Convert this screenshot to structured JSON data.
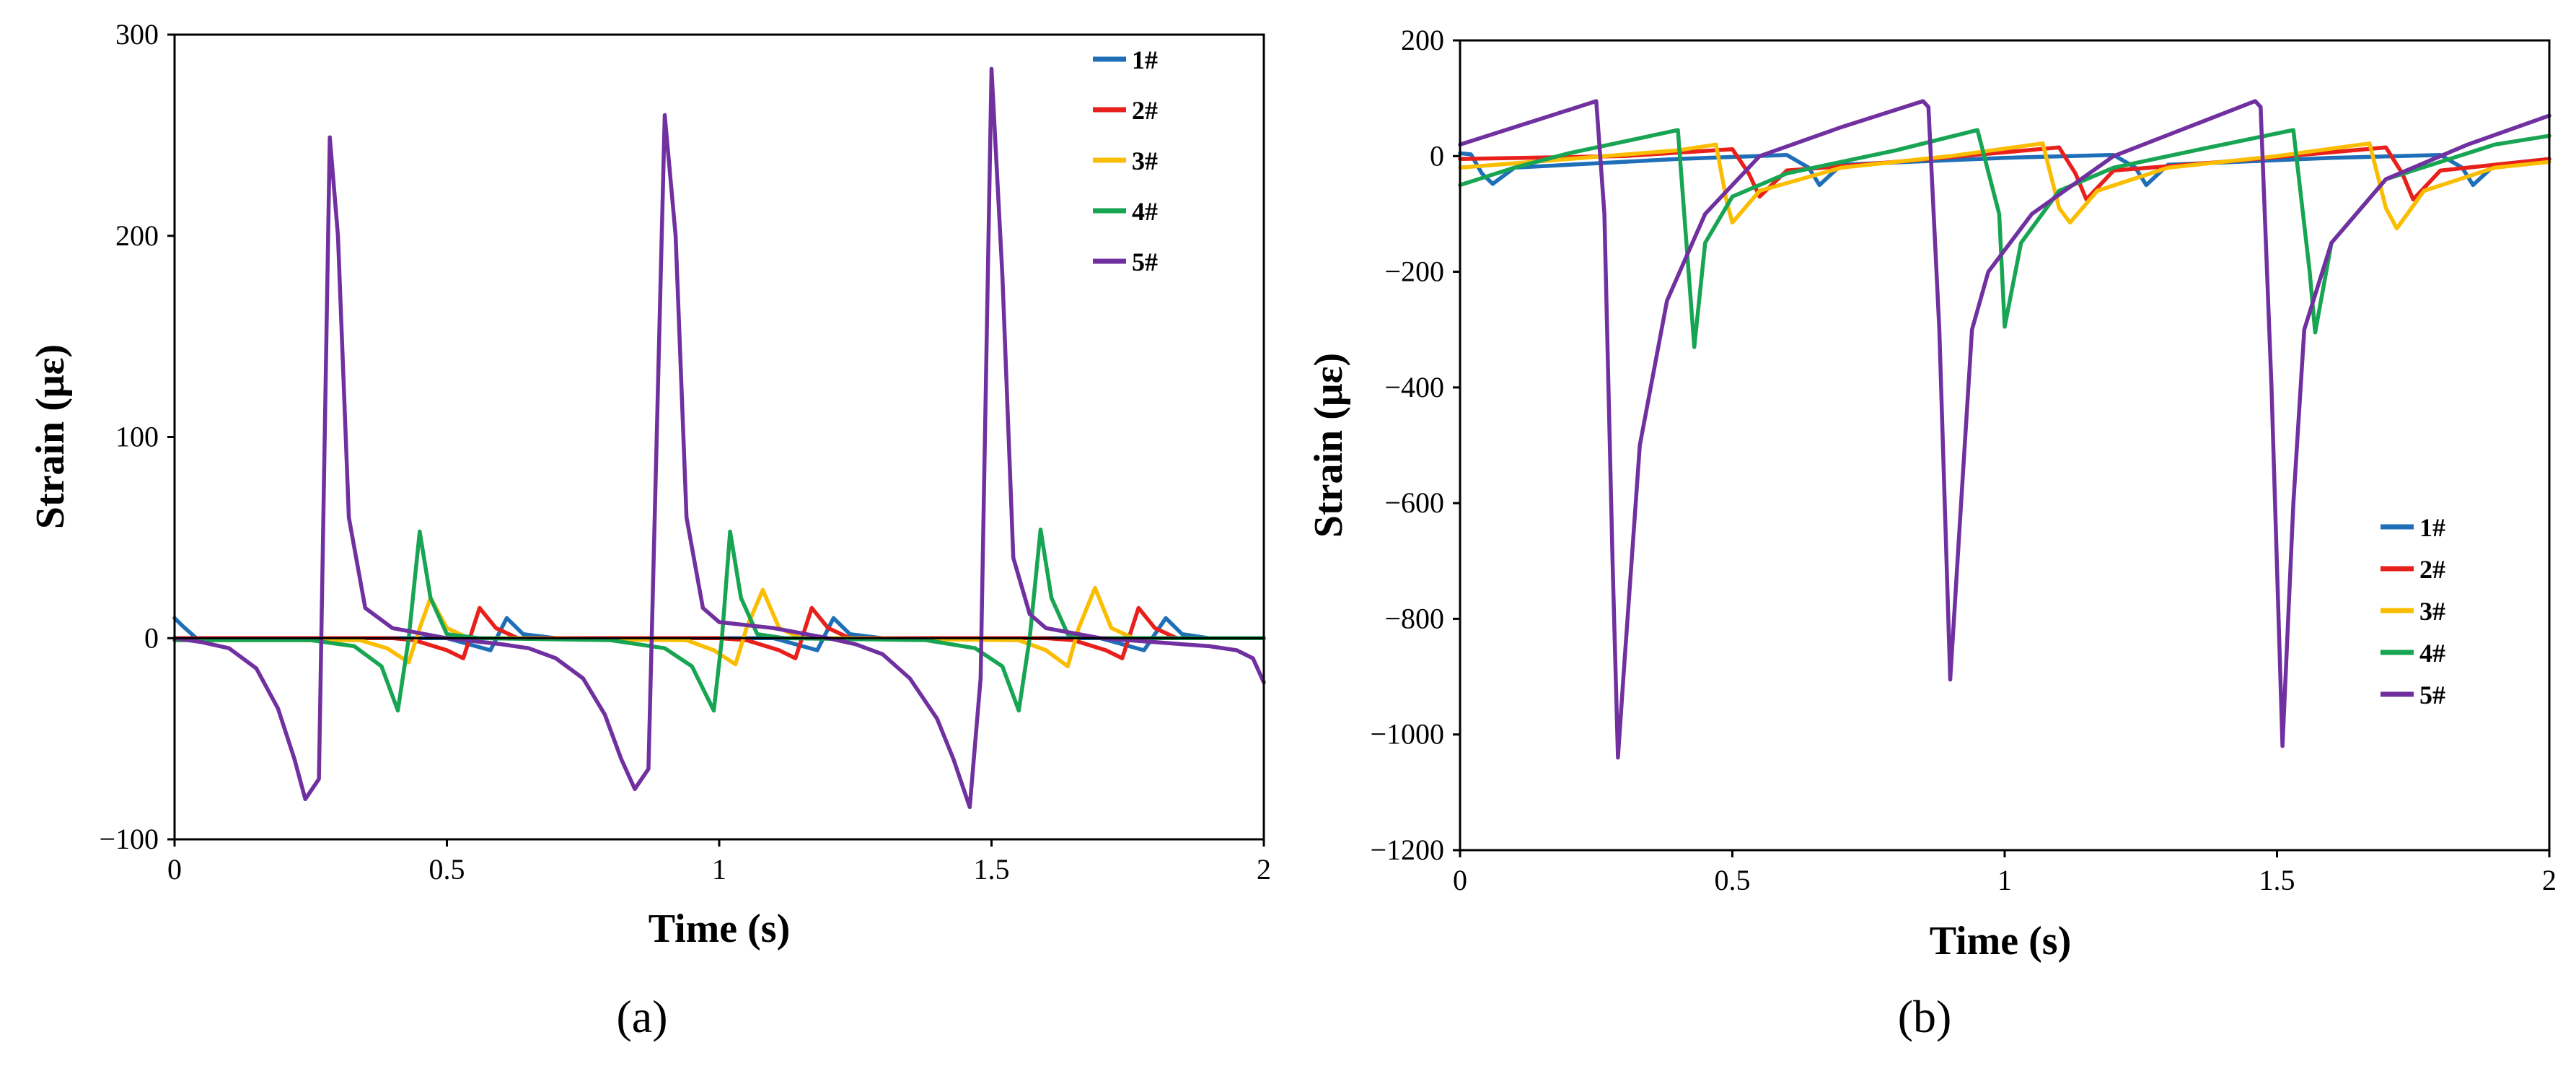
{
  "colors": {
    "1#": "#1f6fb8",
    "2#": "#e8201c",
    "3#": "#fbbd00",
    "4#": "#18a553",
    "5#": "#7030a0"
  },
  "chart_data": [
    {
      "id": "a",
      "type": "line",
      "caption": "(a)",
      "xlabel": "Time (s)",
      "ylabel": "Strain (με)",
      "xlim": [
        0,
        2
      ],
      "ylim": [
        -100,
        300
      ],
      "xticks": [
        0,
        0.5,
        1,
        1.5,
        2
      ],
      "xtick_labels": [
        "0",
        "0.5",
        "1",
        "1.5",
        "2"
      ],
      "yticks": [
        -100,
        0,
        100,
        200,
        300
      ],
      "ytick_labels": [
        "−100",
        "0",
        "100",
        "200",
        "300"
      ],
      "legend_position": "top-right",
      "series": [
        {
          "name": "1#",
          "color": "#1f6fb8",
          "x": [
            0,
            0.015,
            0.04,
            0.5,
            0.54,
            0.58,
            0.61,
            0.64,
            0.7,
            1.1,
            1.14,
            1.18,
            1.21,
            1.24,
            1.3,
            1.7,
            1.74,
            1.78,
            1.82,
            1.85,
            1.9,
            2.0
          ],
          "y": [
            10,
            6,
            0,
            0,
            -3,
            -6,
            10,
            2,
            0,
            0,
            -3,
            -6,
            10,
            2,
            0,
            0,
            -3,
            -6,
            10,
            2,
            0,
            0
          ]
        },
        {
          "name": "2#",
          "color": "#e8201c",
          "x": [
            0,
            0.4,
            0.44,
            0.5,
            0.53,
            0.56,
            0.59,
            0.63,
            0.68,
            1.0,
            1.05,
            1.11,
            1.14,
            1.17,
            1.2,
            1.24,
            1.28,
            1.6,
            1.65,
            1.71,
            1.74,
            1.77,
            1.8,
            1.84,
            1.88,
            2.0
          ],
          "y": [
            0,
            0,
            -1,
            -6,
            -10,
            15,
            5,
            0,
            0,
            0,
            -1,
            -6,
            -10,
            15,
            5,
            0,
            0,
            0,
            -1,
            -6,
            -10,
            15,
            5,
            0,
            0,
            0
          ]
        },
        {
          "name": "3#",
          "color": "#fbbd00",
          "x": [
            0,
            0.34,
            0.39,
            0.43,
            0.45,
            0.47,
            0.5,
            0.54,
            0.6,
            0.94,
            0.99,
            1.03,
            1.05,
            1.08,
            1.11,
            1.15,
            1.21,
            1.55,
            1.6,
            1.64,
            1.66,
            1.69,
            1.72,
            1.76,
            1.82,
            2.0
          ],
          "y": [
            -1,
            -1,
            -5,
            -12,
            5,
            20,
            5,
            0,
            0,
            -1,
            -6,
            -13,
            5,
            24,
            5,
            0,
            0,
            -1,
            -6,
            -14,
            5,
            25,
            5,
            0,
            0,
            0
          ]
        },
        {
          "name": "4#",
          "color": "#18a553",
          "x": [
            0,
            0.25,
            0.33,
            0.38,
            0.41,
            0.43,
            0.45,
            0.47,
            0.5,
            0.56,
            0.8,
            0.9,
            0.95,
            0.99,
            1.005,
            1.02,
            1.04,
            1.07,
            1.12,
            1.38,
            1.47,
            1.52,
            1.55,
            1.57,
            1.59,
            1.61,
            1.64,
            1.7,
            2.0
          ],
          "y": [
            -1,
            -1,
            -4,
            -14,
            -36,
            0,
            53,
            20,
            2,
            0,
            -1,
            -5,
            -14,
            -36,
            0,
            53,
            20,
            2,
            0,
            -1,
            -5,
            -14,
            -36,
            0,
            54,
            20,
            2,
            0,
            0
          ]
        },
        {
          "name": "5#",
          "color": "#7030a0",
          "x": [
            0,
            0.05,
            0.1,
            0.15,
            0.19,
            0.22,
            0.24,
            0.265,
            0.285,
            0.3,
            0.32,
            0.35,
            0.4,
            0.5,
            0.6,
            0.65,
            0.7,
            0.75,
            0.79,
            0.82,
            0.845,
            0.87,
            0.9,
            0.92,
            0.94,
            0.97,
            1.0,
            1.1,
            1.2,
            1.25,
            1.3,
            1.35,
            1.4,
            1.43,
            1.46,
            1.48,
            1.5,
            1.52,
            1.54,
            1.57,
            1.6,
            1.7,
            1.8,
            1.9,
            1.95,
            1.98,
            2.0
          ],
          "y": [
            0,
            -2,
            -5,
            -15,
            -35,
            -60,
            -80,
            -70,
            249,
            200,
            60,
            15,
            5,
            0,
            -3,
            -5,
            -10,
            -20,
            -38,
            -60,
            -75,
            -65,
            260,
            200,
            60,
            15,
            8,
            5,
            0,
            -3,
            -8,
            -20,
            -40,
            -60,
            -84,
            -20,
            283,
            180,
            40,
            12,
            5,
            0,
            -2,
            -4,
            -6,
            -10,
            -22
          ]
        }
      ]
    },
    {
      "id": "b",
      "type": "line",
      "caption": "(b)",
      "xlabel": "Time (s)",
      "ylabel": "Strain (με)",
      "xlim": [
        0,
        2
      ],
      "ylim": [
        -1200,
        200
      ],
      "xticks": [
        0,
        0.5,
        1,
        1.5,
        2
      ],
      "xtick_labels": [
        "0",
        "0.5",
        "1",
        "1.5",
        "2"
      ],
      "yticks": [
        -1200,
        -1000,
        -800,
        -600,
        -400,
        -200,
        0,
        200
      ],
      "ytick_labels": [
        "−1200",
        "−1000",
        "−800",
        "−600",
        "−400",
        "−200",
        "0",
        "200"
      ],
      "legend_position": "bottom-right",
      "series": [
        {
          "name": "1#",
          "color": "#1f6fb8",
          "x": [
            0,
            0.02,
            0.04,
            0.06,
            0.1,
            0.4,
            0.6,
            0.64,
            0.66,
            0.7,
            1.0,
            1.2,
            1.24,
            1.26,
            1.3,
            1.6,
            1.8,
            1.84,
            1.86,
            1.9,
            2.0
          ],
          "y": [
            5,
            3,
            -30,
            -48,
            -20,
            -5,
            2,
            -20,
            -50,
            -15,
            -3,
            2,
            -20,
            -50,
            -15,
            -3,
            2,
            -20,
            -50,
            -15,
            -5
          ]
        },
        {
          "name": "2#",
          "color": "#e8201c",
          "x": [
            0,
            0.3,
            0.5,
            0.53,
            0.55,
            0.6,
            0.8,
            1.1,
            1.13,
            1.15,
            1.2,
            1.4,
            1.7,
            1.73,
            1.75,
            1.8,
            2.0
          ],
          "y": [
            -5,
            0,
            12,
            -30,
            -70,
            -25,
            -10,
            15,
            -30,
            -75,
            -25,
            -10,
            15,
            -30,
            -75,
            -25,
            -5
          ]
        },
        {
          "name": "3#",
          "color": "#fbbd00",
          "x": [
            0,
            0.2,
            0.4,
            0.47,
            0.49,
            0.5,
            0.55,
            0.7,
            0.9,
            1.07,
            1.1,
            1.12,
            1.17,
            1.3,
            1.5,
            1.67,
            1.7,
            1.72,
            1.77,
            1.9,
            2.0
          ],
          "y": [
            -20,
            -5,
            10,
            20,
            -80,
            -115,
            -60,
            -20,
            0,
            22,
            -90,
            -115,
            -60,
            -20,
            0,
            22,
            -90,
            -125,
            -60,
            -20,
            -10
          ]
        },
        {
          "name": "4#",
          "color": "#18a553",
          "x": [
            0,
            0.1,
            0.2,
            0.3,
            0.4,
            0.43,
            0.45,
            0.5,
            0.6,
            0.8,
            0.95,
            0.99,
            1.0,
            1.03,
            1.1,
            1.2,
            1.35,
            1.53,
            1.56,
            1.57,
            1.6,
            1.7,
            1.9,
            2.0
          ],
          "y": [
            -50,
            -20,
            5,
            25,
            45,
            -330,
            -150,
            -70,
            -30,
            10,
            45,
            -100,
            -295,
            -150,
            -60,
            -20,
            10,
            45,
            -200,
            -305,
            -150,
            -40,
            20,
            35
          ]
        },
        {
          "name": "5#",
          "color": "#7030a0",
          "x": [
            0,
            0.1,
            0.2,
            0.25,
            0.265,
            0.28,
            0.29,
            0.3,
            0.33,
            0.38,
            0.45,
            0.55,
            0.7,
            0.85,
            0.86,
            0.88,
            0.9,
            0.92,
            0.94,
            0.97,
            1.05,
            1.2,
            1.46,
            1.47,
            1.49,
            1.51,
            1.53,
            1.55,
            1.6,
            1.7,
            1.85,
            2.0
          ],
          "y": [
            20,
            50,
            80,
            95,
            -100,
            -700,
            -1040,
            -900,
            -500,
            -250,
            -100,
            0,
            50,
            95,
            85,
            -300,
            -905,
            -600,
            -300,
            -200,
            -100,
            0,
            95,
            85,
            -400,
            -1020,
            -600,
            -300,
            -150,
            -40,
            20,
            70
          ]
        }
      ]
    }
  ]
}
